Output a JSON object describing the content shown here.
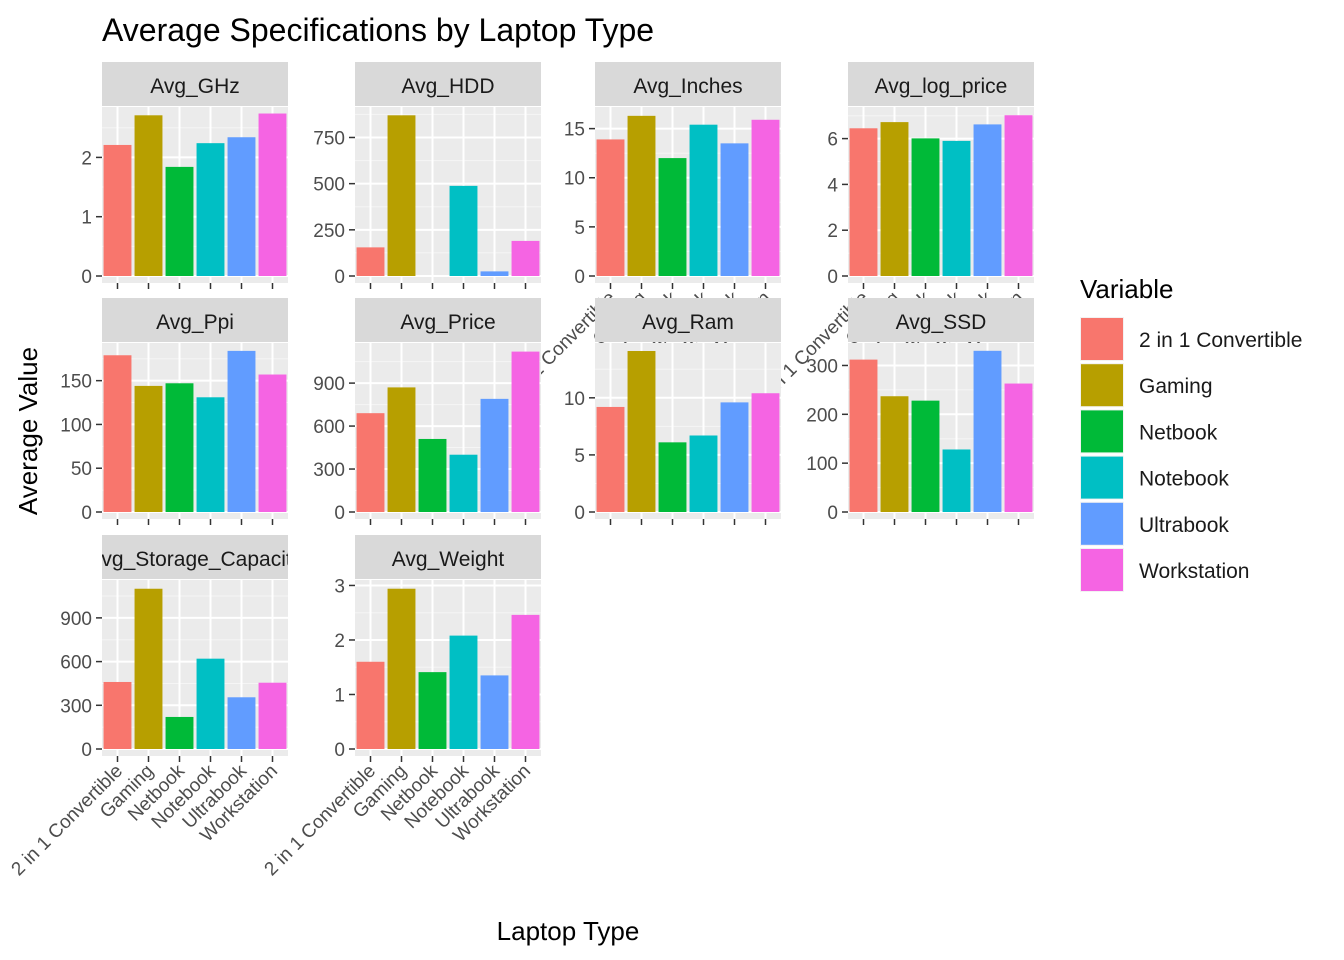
{
  "chart_data": {
    "type": "bar",
    "title": "Average Specifications by Laptop Type",
    "xlabel": "Laptop Type",
    "ylabel": "Average Value",
    "legend": {
      "title": "Variable",
      "position": "right",
      "entries": [
        "2 in 1 Convertible",
        "Gaming",
        "Netbook",
        "Notebook",
        "Ultrabook",
        "Workstation"
      ]
    },
    "categories": [
      "2 in 1 Convertible",
      "Gaming",
      "Netbook",
      "Notebook",
      "Ultrabook",
      "Workstation"
    ],
    "colors": {
      "2 in 1 Convertible": "#F8766D",
      "Gaming": "#B79F00",
      "Netbook": "#00BA38",
      "Notebook": "#00BFC4",
      "Ultrabook": "#619CFF",
      "Workstation": "#F564E3"
    },
    "grid": true,
    "facets": [
      {
        "name": "Avg_GHz",
        "values": [
          2.21,
          2.71,
          1.84,
          2.24,
          2.34,
          2.74
        ],
        "ylim": [
          0,
          2.85
        ],
        "ticks": [
          0,
          1,
          2
        ]
      },
      {
        "name": "Avg_HDD",
        "values": [
          155,
          870,
          0,
          488,
          25,
          190
        ],
        "ylim": [
          0,
          915
        ],
        "ticks": [
          0,
          250,
          500,
          750
        ]
      },
      {
        "name": "Avg_Inches",
        "values": [
          13.9,
          16.3,
          12.0,
          15.4,
          13.5,
          15.9
        ],
        "ylim": [
          0,
          17.2
        ],
        "ticks": [
          0,
          5,
          10,
          15
        ]
      },
      {
        "name": "Avg_log_price",
        "values": [
          6.45,
          6.72,
          6.01,
          5.9,
          6.62,
          7.02
        ],
        "ylim": [
          0,
          7.38
        ],
        "ticks": [
          0,
          2,
          4,
          6
        ]
      },
      {
        "name": "Avg_Ppi",
        "values": [
          179,
          144,
          147,
          131,
          184,
          157
        ],
        "ylim": [
          0,
          193
        ],
        "ticks": [
          0,
          50,
          100,
          150
        ]
      },
      {
        "name": "Avg_Price",
        "values": [
          690,
          870,
          510,
          400,
          790,
          1120
        ],
        "ylim": [
          0,
          1180
        ],
        "ticks": [
          0,
          300,
          600,
          900
        ]
      },
      {
        "name": "Avg_Ram",
        "values": [
          9.2,
          14.1,
          6.1,
          6.7,
          9.6,
          10.4
        ],
        "ylim": [
          0,
          14.8
        ],
        "ticks": [
          0,
          5,
          10
        ]
      },
      {
        "name": "Avg_SSD",
        "values": [
          312,
          237,
          228,
          128,
          330,
          263
        ],
        "ylim": [
          0,
          346
        ],
        "ticks": [
          0,
          100,
          200,
          300
        ]
      },
      {
        "name": "Avg_Storage_Capacity",
        "label": "Avg_Storage_Capacity",
        "values": [
          460,
          1100,
          220,
          620,
          355,
          455
        ],
        "ylim": [
          0,
          1160
        ],
        "ticks": [
          0,
          300,
          600,
          900
        ]
      },
      {
        "name": "Avg_Weight",
        "values": [
          1.6,
          2.94,
          1.41,
          2.08,
          1.35,
          2.46
        ],
        "ylim": [
          0,
          3.1
        ],
        "ticks": [
          0,
          1,
          2,
          3
        ]
      }
    ]
  }
}
